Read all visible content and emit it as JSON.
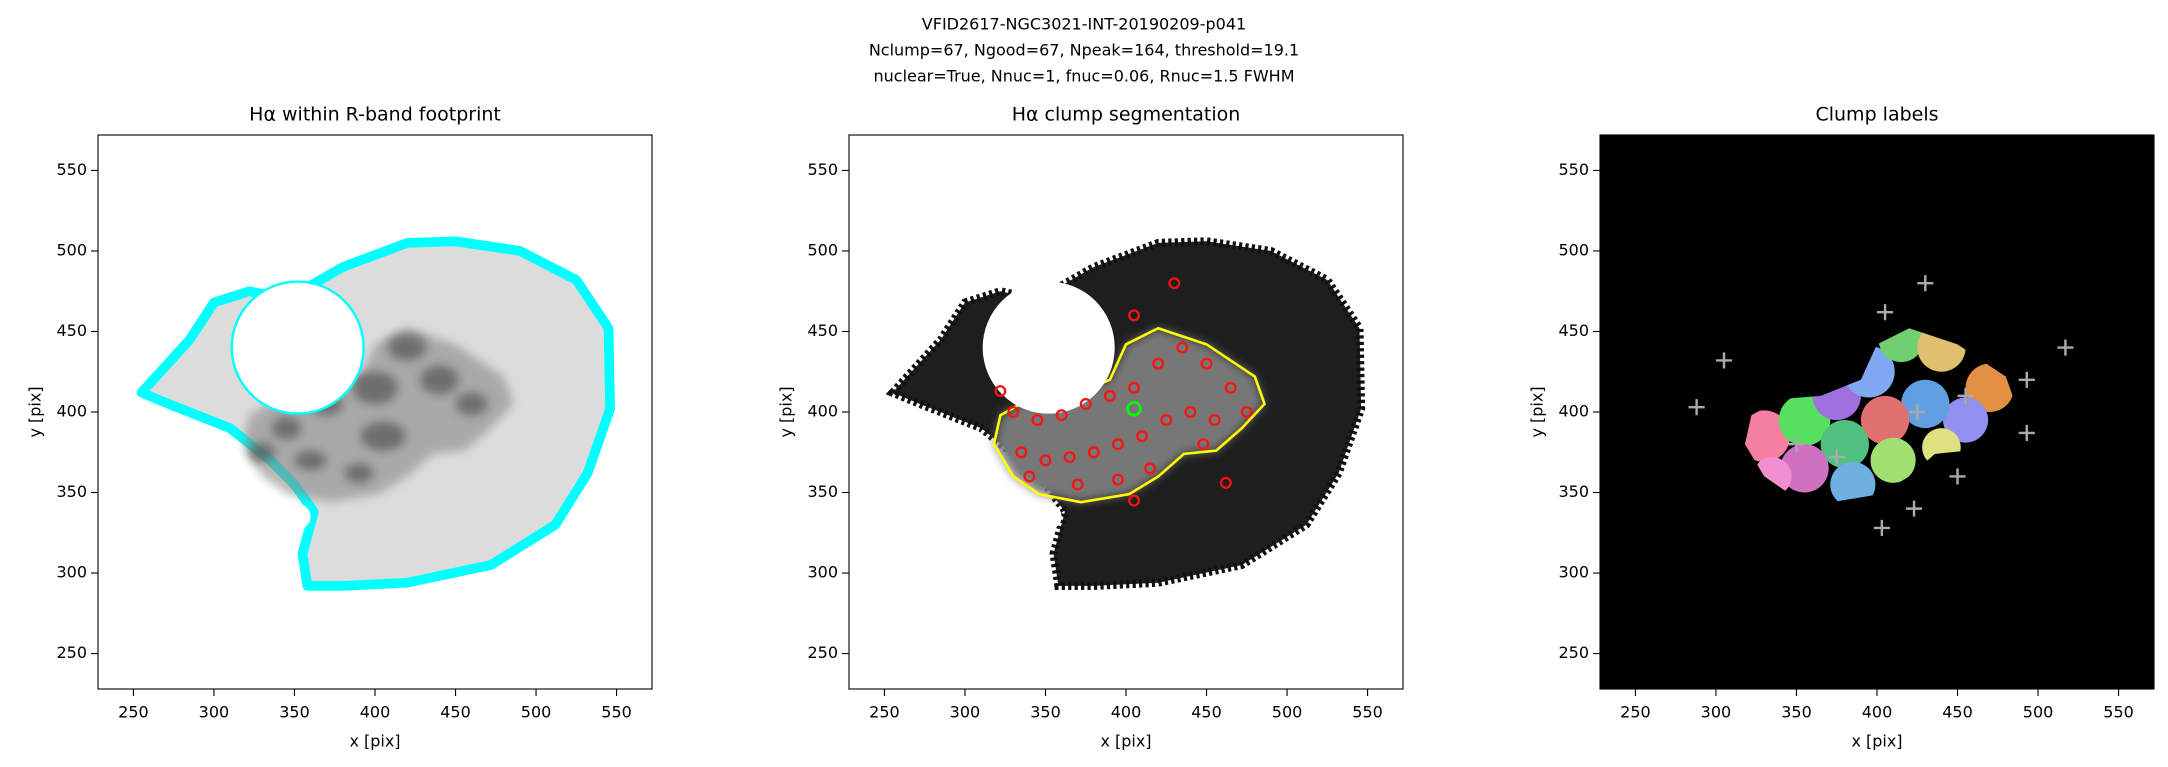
{
  "suptitle": [
    "VFID2617-NGC3021-INT-20190209-p041",
    "Nclump=67, Ngood=67, Npeak=164, threshold=19.1",
    "nuclear=True, Nnuc=1, fnuc=0.06, Rnuc=1.5 FWHM"
  ],
  "chart_data": [
    {
      "type": "image",
      "title": "Hα within R-band footprint",
      "xlabel": "x [pix]",
      "ylabel": "y [pix]",
      "xlim": [
        228,
        572
      ],
      "ylim": [
        228,
        572
      ],
      "xticks": [
        250,
        300,
        350,
        400,
        450,
        500,
        550
      ],
      "yticks": [
        250,
        300,
        350,
        400,
        450,
        500,
        550
      ]
    },
    {
      "type": "image",
      "title": "Hα clump segmentation",
      "xlabel": "x [pix]",
      "ylabel": "y [pix]",
      "xlim": [
        228,
        572
      ],
      "ylim": [
        228,
        572
      ],
      "xticks": [
        250,
        300,
        350,
        400,
        450,
        500,
        550
      ],
      "yticks": [
        250,
        300,
        350,
        400,
        450,
        500,
        550
      ]
    },
    {
      "type": "image",
      "title": "Clump labels",
      "xlabel": "x [pix]",
      "ylabel": "y [pix]",
      "xlim": [
        228,
        572
      ],
      "ylim": [
        228,
        572
      ],
      "xticks": [
        250,
        300,
        350,
        400,
        450,
        500,
        550
      ],
      "yticks": [
        250,
        300,
        350,
        400,
        450,
        500,
        550
      ]
    }
  ]
}
